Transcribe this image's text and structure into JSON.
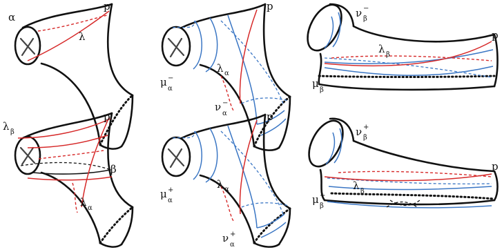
{
  "labels": {
    "p1": {
      "main": "p"
    },
    "alpha": {
      "main": "α"
    },
    "lambda": {
      "main": "λ"
    },
    "p2": {
      "main": "p"
    },
    "lambda_alpha_top": {
      "main": "λ",
      "sub": "α"
    },
    "mu_alpha_minus": {
      "main": "μ",
      "sub": "α",
      "sup": "−"
    },
    "nu_alpha_minus": {
      "main": "ν",
      "sub": "α",
      "sup": "−"
    },
    "p3": {
      "main": "p"
    },
    "nu_beta_minus": {
      "main": "ν",
      "sub": "β",
      "sup": "−"
    },
    "lambda_beta_top": {
      "main": "λ",
      "sub": "β"
    },
    "mu_beta_top": {
      "main": "μ",
      "sub": "β"
    },
    "p4": {
      "main": "p"
    },
    "lambda_beta_left": {
      "main": "λ",
      "sub": "β"
    },
    "beta": {
      "main": "β"
    },
    "lambda_alpha_bl": {
      "main": "λ",
      "sub": "α"
    },
    "p5": {
      "main": "p"
    },
    "lambda_alpha_bm": {
      "main": "λ",
      "sub": "α"
    },
    "mu_alpha_plus": {
      "main": "μ",
      "sub": "α",
      "sup": "+"
    },
    "nu_alpha_plus": {
      "main": "ν",
      "sub": "α",
      "sup": "+"
    },
    "p6": {
      "main": "p"
    },
    "nu_beta_plus": {
      "main": "ν",
      "sub": "β",
      "sup": "+"
    },
    "lambda_beta_br": {
      "main": "λ",
      "sub": "β"
    },
    "mu_beta_plus": {
      "main": "μ",
      "sub": "β",
      "sup": "+"
    }
  },
  "colors": {
    "red_curve": "#d62828",
    "blue_curve": "#3a76c4",
    "outline": "#111111"
  }
}
